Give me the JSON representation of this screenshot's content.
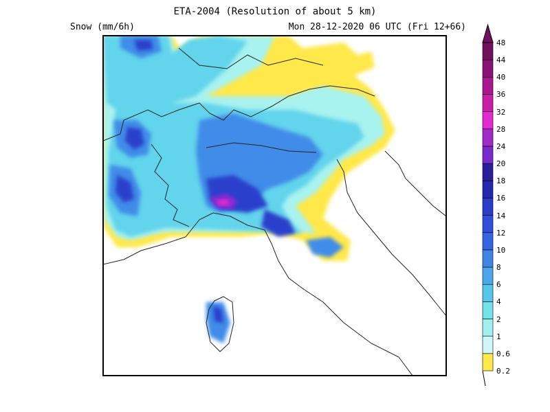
{
  "header": {
    "title": "ETA-2004 (Resolution of about 5 km)",
    "variable": "Snow (mm/6h)",
    "valid_time": "Mon 28-12-2020 06 UTC (Fri 12+66)"
  },
  "colorbar": {
    "levels": [
      "0.2",
      "0.6",
      "1",
      "2",
      "4",
      "6",
      "8",
      "10",
      "12",
      "14",
      "16",
      "18",
      "20",
      "24",
      "28",
      "32",
      "36",
      "40",
      "44",
      "48"
    ],
    "colors": [
      "#ffe84a",
      "#cff7f7",
      "#9ff0ee",
      "#73e2ea",
      "#55c7ea",
      "#4aa8ea",
      "#3e85e6",
      "#3665e0",
      "#2f4fd8",
      "#2a3cc8",
      "#2229ae",
      "#2a1e9a",
      "#7a2acc",
      "#a02cc8",
      "#e22ad0",
      "#c81ea8",
      "#a81690",
      "#8a1276",
      "#70105e"
    ]
  },
  "colors": {
    "frame": "#000000",
    "border": "#222222",
    "background": "#ffffff"
  }
}
